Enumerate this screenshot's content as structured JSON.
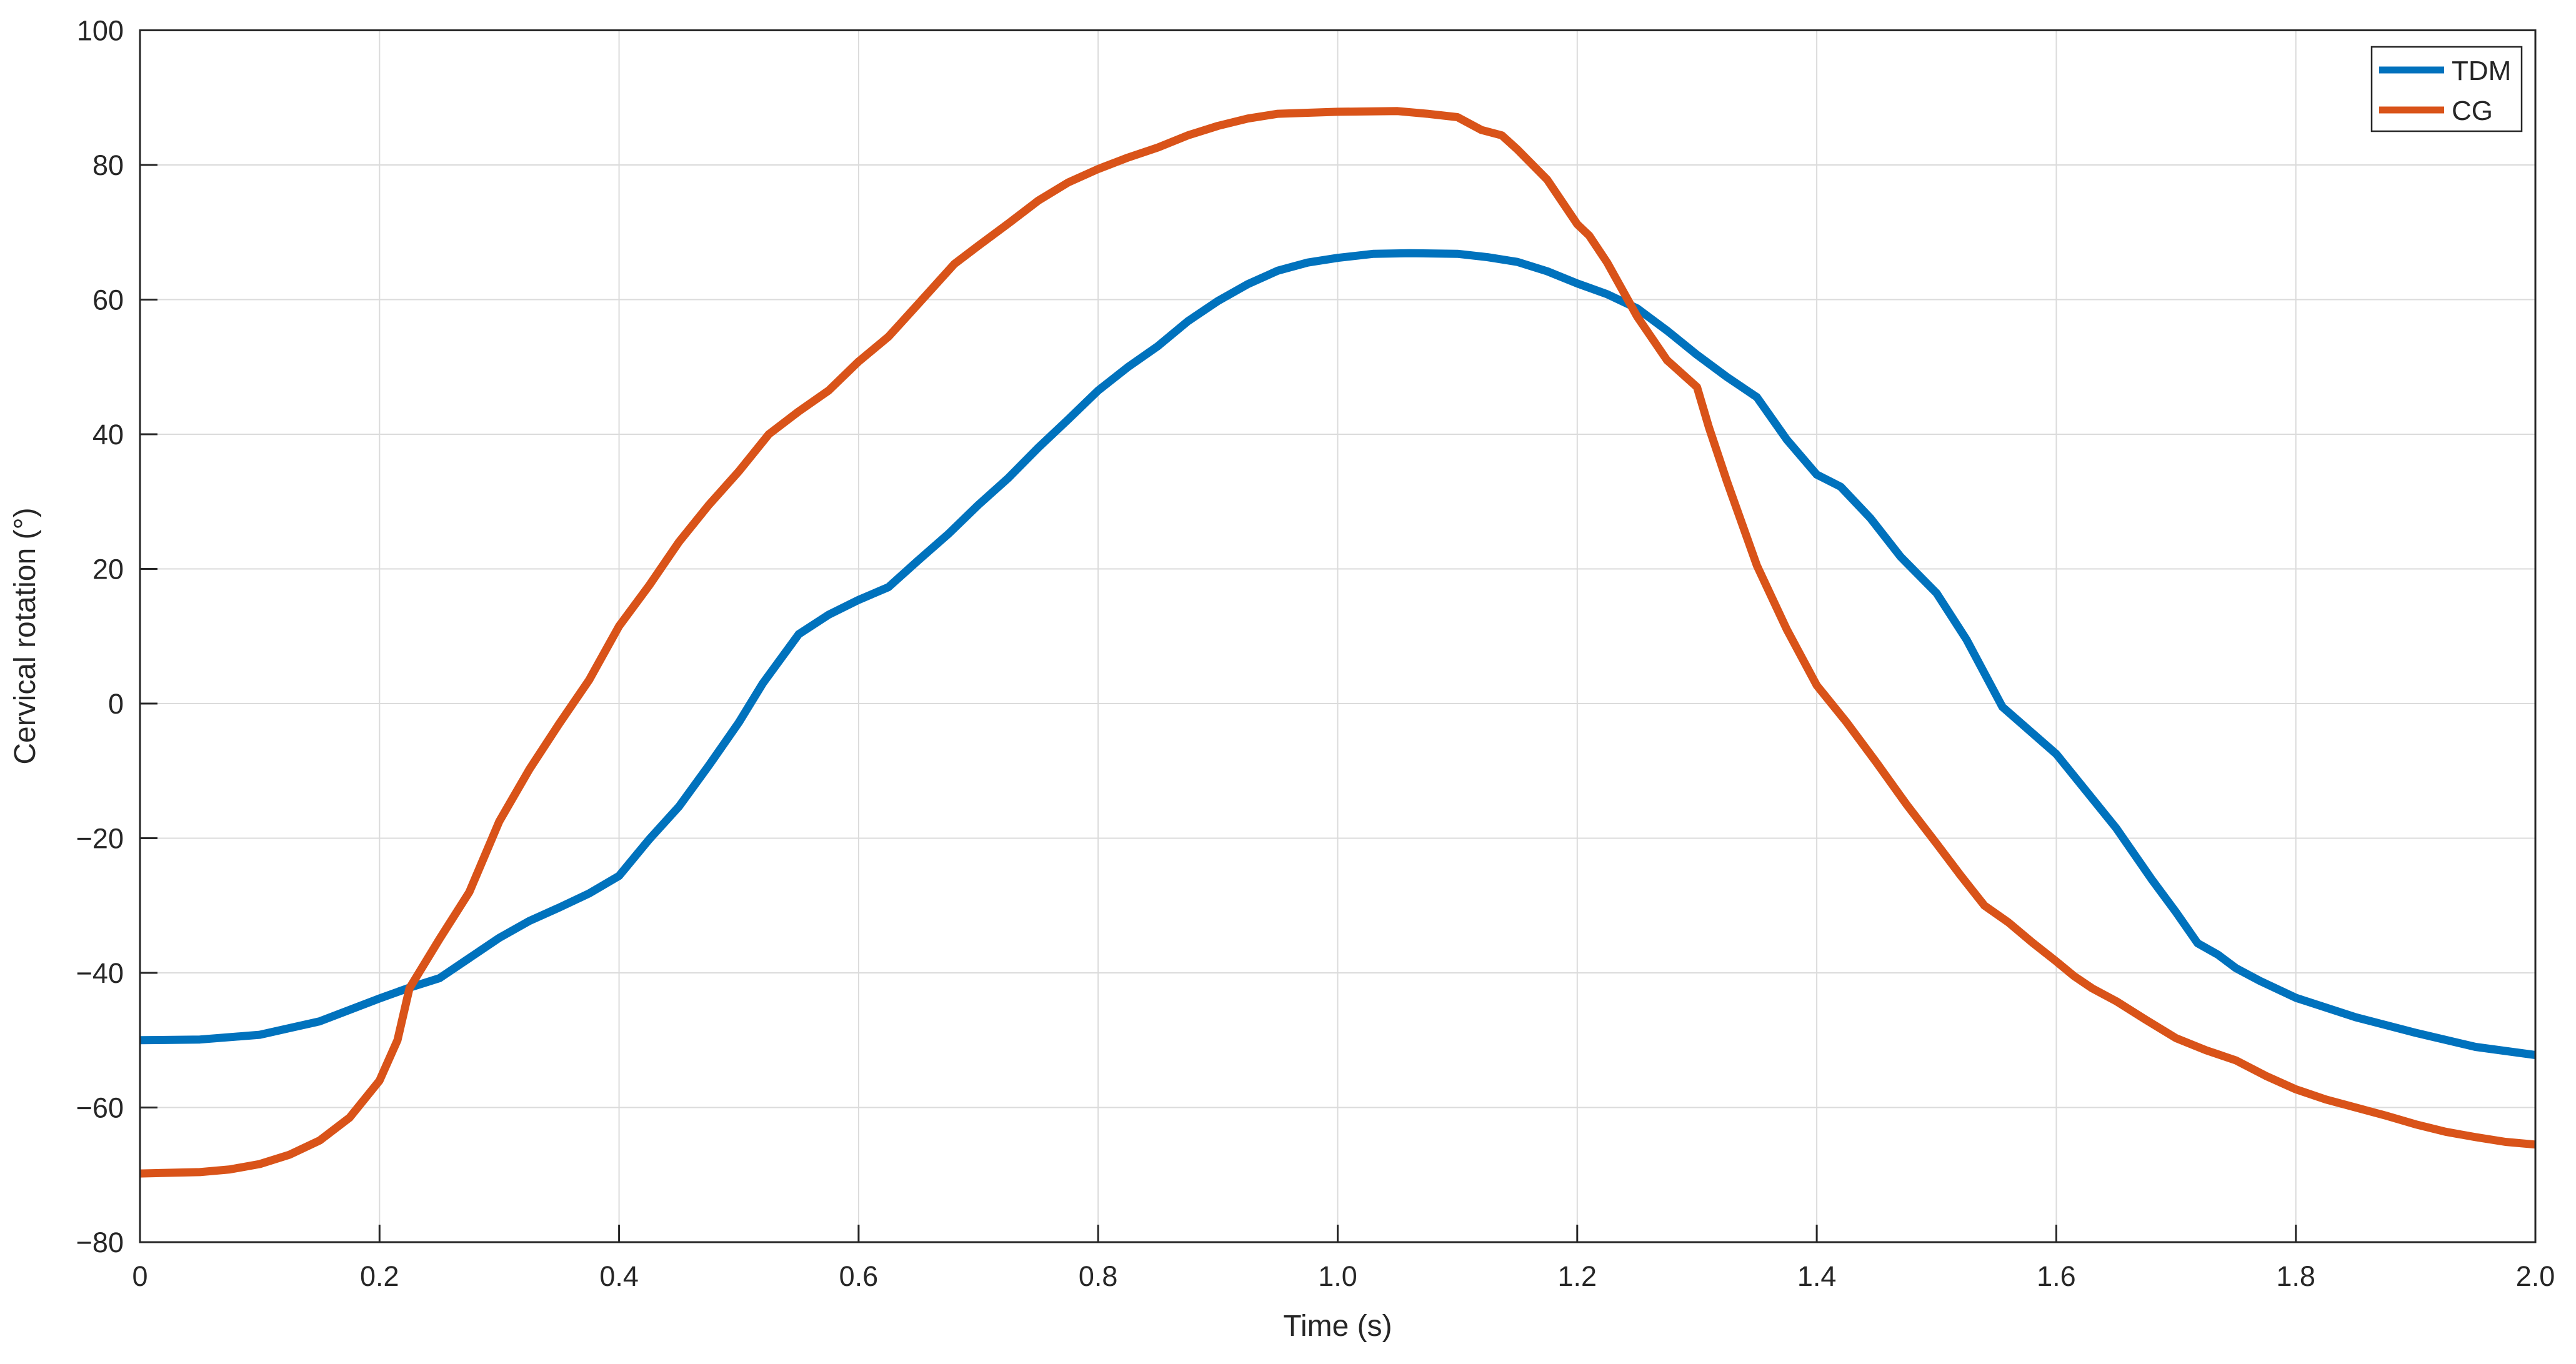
{
  "chart_data": {
    "type": "line",
    "title": "",
    "xlabel": "Time (s)",
    "ylabel": "Cervical rotation (°)",
    "xlim": [
      0,
      2
    ],
    "ylim": [
      -80,
      100
    ],
    "grid": true,
    "xticks": [
      0,
      0.2,
      0.4,
      0.6,
      0.8,
      1.0,
      1.2,
      1.4,
      1.6,
      1.8,
      2.0
    ],
    "xtick_labels": [
      "0",
      "0.2",
      "0.4",
      "0.6",
      "0.8",
      "1.0",
      "1.2",
      "1.4",
      "1.6",
      "1.8",
      "2.0"
    ],
    "yticks": [
      -80,
      -60,
      -40,
      -20,
      0,
      20,
      40,
      60,
      80,
      100
    ],
    "ytick_labels": [
      "−80",
      "−60",
      "−40",
      "−20",
      "0",
      "20",
      "40",
      "60",
      "80",
      "100"
    ],
    "legend": {
      "position": "top-right",
      "entries": [
        {
          "label": "TDM",
          "color": "#0072BD"
        },
        {
          "label": "CG",
          "color": "#D95319"
        }
      ]
    },
    "series": [
      {
        "name": "TDM",
        "color": "#0072BD",
        "points": [
          [
            0,
            -50
          ],
          [
            0.05,
            -49.9
          ],
          [
            0.1,
            -49.2
          ],
          [
            0.15,
            -47.2
          ],
          [
            0.2,
            -43.8
          ],
          [
            0.225,
            -42.2
          ],
          [
            0.25,
            -40.8
          ],
          [
            0.275,
            -37.8
          ],
          [
            0.3,
            -34.8
          ],
          [
            0.325,
            -32.3
          ],
          [
            0.35,
            -30.3
          ],
          [
            0.375,
            -28.2
          ],
          [
            0.4,
            -25.6
          ],
          [
            0.425,
            -20.2
          ],
          [
            0.45,
            -15.3
          ],
          [
            0.475,
            -9.2
          ],
          [
            0.5,
            -2.8
          ],
          [
            0.52,
            3
          ],
          [
            0.55,
            10.3
          ],
          [
            0.575,
            13.2
          ],
          [
            0.6,
            15.4
          ],
          [
            0.625,
            17.3
          ],
          [
            0.65,
            21.3
          ],
          [
            0.675,
            25.2
          ],
          [
            0.7,
            29.5
          ],
          [
            0.725,
            33.5
          ],
          [
            0.75,
            38
          ],
          [
            0.775,
            42.2
          ],
          [
            0.8,
            46.5
          ],
          [
            0.825,
            50
          ],
          [
            0.85,
            53.1
          ],
          [
            0.875,
            56.8
          ],
          [
            0.9,
            59.8
          ],
          [
            0.925,
            62.3
          ],
          [
            0.95,
            64.3
          ],
          [
            0.975,
            65.5
          ],
          [
            1,
            66.2
          ],
          [
            1.03,
            66.8
          ],
          [
            1.06,
            66.9
          ],
          [
            1.1,
            66.8
          ],
          [
            1.125,
            66.3
          ],
          [
            1.15,
            65.6
          ],
          [
            1.175,
            64.2
          ],
          [
            1.2,
            62.4
          ],
          [
            1.225,
            60.8
          ],
          [
            1.25,
            58.7
          ],
          [
            1.275,
            55.4
          ],
          [
            1.3,
            51.8
          ],
          [
            1.325,
            48.5
          ],
          [
            1.35,
            45.5
          ],
          [
            1.375,
            39.2
          ],
          [
            1.4,
            34
          ],
          [
            1.42,
            32.2
          ],
          [
            1.445,
            27.5
          ],
          [
            1.47,
            21.8
          ],
          [
            1.5,
            16.4
          ],
          [
            1.525,
            9.5
          ],
          [
            1.555,
            -0.5
          ],
          [
            1.6,
            -7.5
          ],
          [
            1.625,
            -13
          ],
          [
            1.65,
            -18.5
          ],
          [
            1.68,
            -26.2
          ],
          [
            1.7,
            -31
          ],
          [
            1.718,
            -35.6
          ],
          [
            1.735,
            -37.3
          ],
          [
            1.75,
            -39.3
          ],
          [
            1.77,
            -41.2
          ],
          [
            1.8,
            -43.7
          ],
          [
            1.85,
            -46.6
          ],
          [
            1.9,
            -48.9
          ],
          [
            1.95,
            -51
          ],
          [
            2,
            -52.2
          ]
        ]
      },
      {
        "name": "CG",
        "color": "#D95319",
        "points": [
          [
            0,
            -69.8
          ],
          [
            0.05,
            -69.6
          ],
          [
            0.075,
            -69.2
          ],
          [
            0.1,
            -68.4
          ],
          [
            0.125,
            -67
          ],
          [
            0.15,
            -64.9
          ],
          [
            0.175,
            -61.5
          ],
          [
            0.2,
            -56
          ],
          [
            0.215,
            -50
          ],
          [
            0.225,
            -42.3
          ],
          [
            0.25,
            -35
          ],
          [
            0.275,
            -28
          ],
          [
            0.3,
            -17.5
          ],
          [
            0.325,
            -9.8
          ],
          [
            0.35,
            -3
          ],
          [
            0.375,
            3.5
          ],
          [
            0.4,
            11.5
          ],
          [
            0.425,
            17.5
          ],
          [
            0.45,
            24
          ],
          [
            0.475,
            29.5
          ],
          [
            0.5,
            34.5
          ],
          [
            0.525,
            40
          ],
          [
            0.55,
            43.4
          ],
          [
            0.575,
            46.5
          ],
          [
            0.6,
            50.8
          ],
          [
            0.625,
            54.5
          ],
          [
            0.65,
            59.4
          ],
          [
            0.68,
            65.3
          ],
          [
            0.7,
            68
          ],
          [
            0.725,
            71.3
          ],
          [
            0.75,
            74.7
          ],
          [
            0.775,
            77.4
          ],
          [
            0.8,
            79.4
          ],
          [
            0.825,
            81.1
          ],
          [
            0.85,
            82.6
          ],
          [
            0.875,
            84.4
          ],
          [
            0.9,
            85.8
          ],
          [
            0.925,
            86.9
          ],
          [
            0.95,
            87.6
          ],
          [
            1,
            87.9
          ],
          [
            1.05,
            88
          ],
          [
            1.075,
            87.6
          ],
          [
            1.1,
            87.1
          ],
          [
            1.12,
            85.2
          ],
          [
            1.137,
            84.4
          ],
          [
            1.15,
            82.3
          ],
          [
            1.175,
            77.8
          ],
          [
            1.2,
            71.2
          ],
          [
            1.21,
            69.5
          ],
          [
            1.225,
            65.5
          ],
          [
            1.25,
            57.5
          ],
          [
            1.275,
            51
          ],
          [
            1.3,
            47
          ],
          [
            1.31,
            41
          ],
          [
            1.325,
            33
          ],
          [
            1.35,
            20.5
          ],
          [
            1.375,
            11
          ],
          [
            1.4,
            2.7
          ],
          [
            1.425,
            -2.8
          ],
          [
            1.45,
            -8.8
          ],
          [
            1.475,
            -15
          ],
          [
            1.5,
            -20.8
          ],
          [
            1.52,
            -25.5
          ],
          [
            1.54,
            -30
          ],
          [
            1.56,
            -32.5
          ],
          [
            1.58,
            -35.5
          ],
          [
            1.6,
            -38.3
          ],
          [
            1.615,
            -40.5
          ],
          [
            1.63,
            -42.3
          ],
          [
            1.65,
            -44.2
          ],
          [
            1.675,
            -47
          ],
          [
            1.7,
            -49.7
          ],
          [
            1.725,
            -51.5
          ],
          [
            1.75,
            -53
          ],
          [
            1.775,
            -55.3
          ],
          [
            1.8,
            -57.3
          ],
          [
            1.825,
            -58.8
          ],
          [
            1.85,
            -60
          ],
          [
            1.875,
            -61.2
          ],
          [
            1.9,
            -62.5
          ],
          [
            1.925,
            -63.6
          ],
          [
            1.95,
            -64.4
          ],
          [
            1.975,
            -65.1
          ],
          [
            2,
            -65.5
          ]
        ]
      }
    ],
    "colors": {
      "background": "#ffffff",
      "axis": "#262626",
      "grid": "#DBDBDB",
      "tdm": "#0072BD",
      "cg": "#D95319"
    }
  }
}
